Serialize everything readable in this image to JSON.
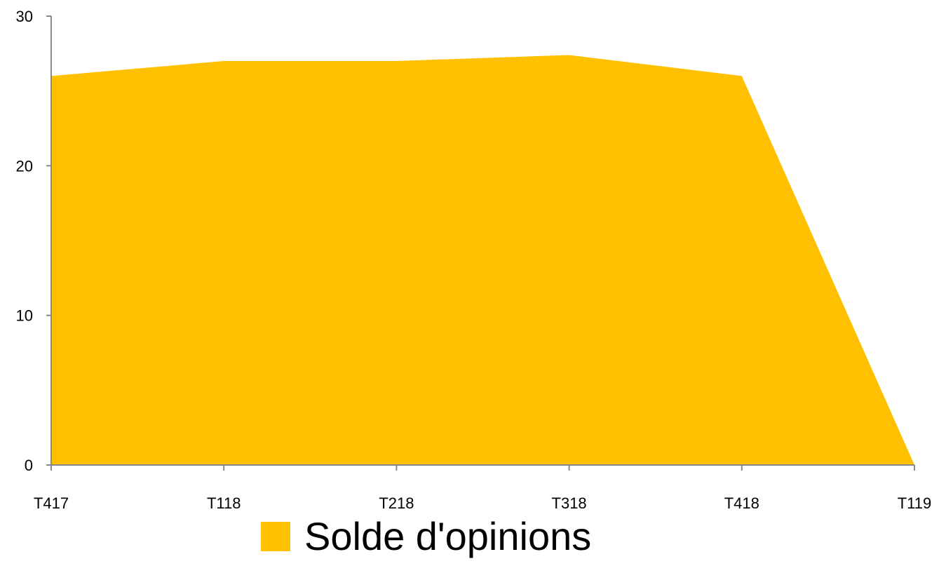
{
  "chart_data": {
    "type": "area",
    "categories": [
      "T417",
      "T118",
      "T218",
      "T318",
      "T418",
      "T119"
    ],
    "series": [
      {
        "name": "Solde d'opinions",
        "values": [
          26,
          27,
          27,
          27.4,
          26,
          0
        ],
        "color": "#FFC000"
      }
    ],
    "y_ticks": [
      "0",
      "10",
      "20",
      "30"
    ],
    "ylim": [
      0,
      30
    ],
    "grid": false,
    "legend": "bottom",
    "axis_color": "#888888"
  },
  "legend": {
    "label": "Solde d'opinions"
  }
}
